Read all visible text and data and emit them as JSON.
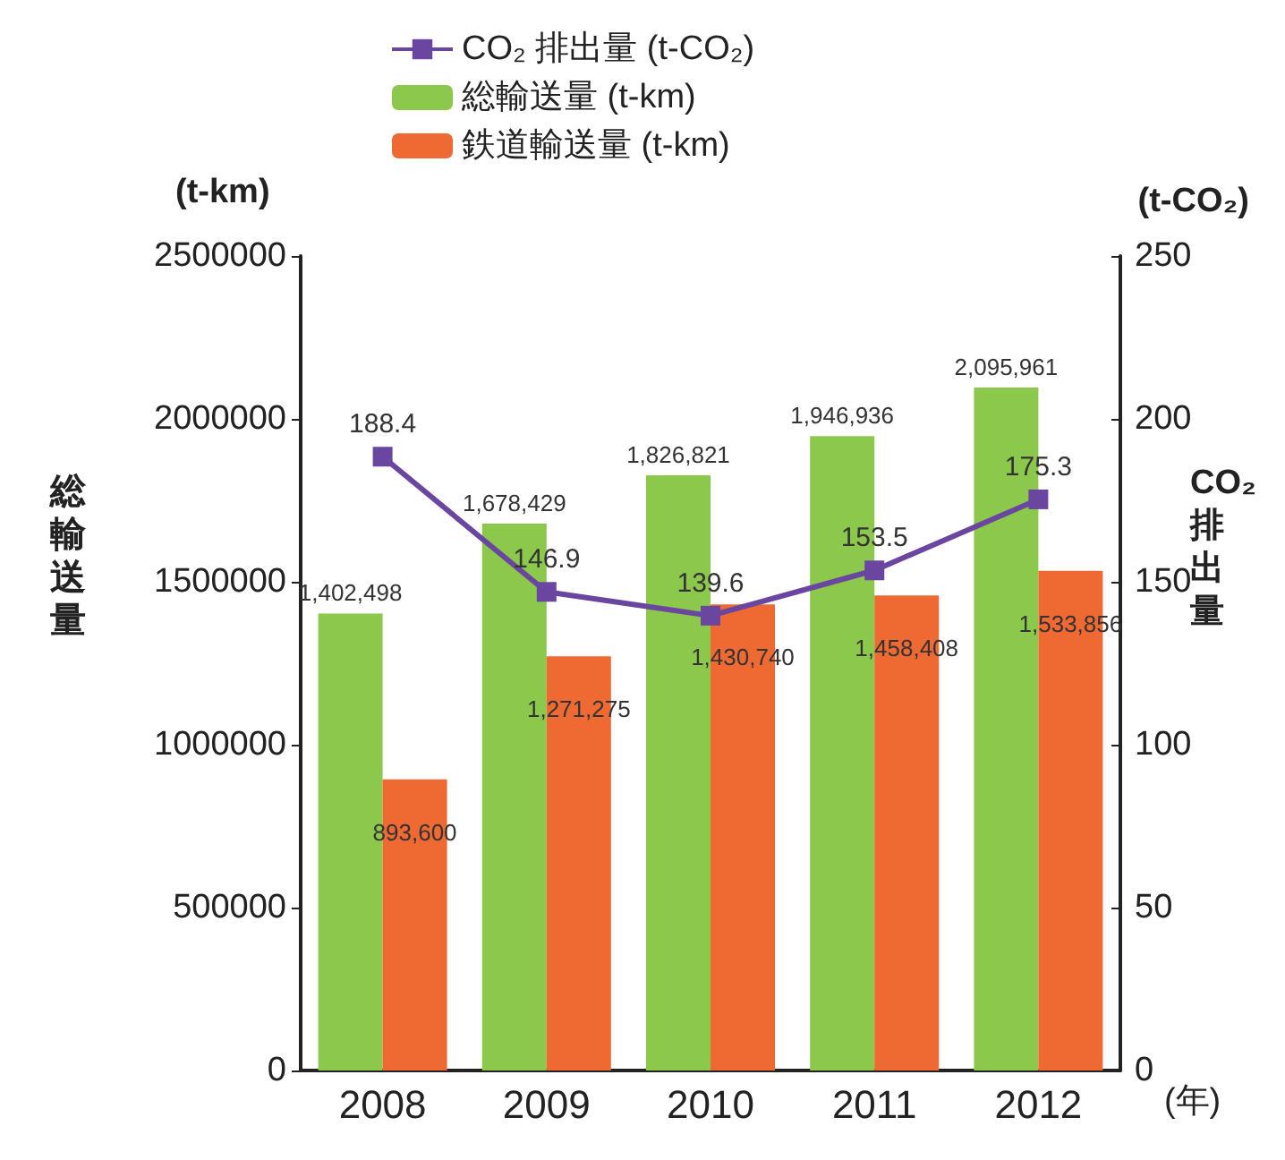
{
  "chart_data": {
    "type": "bar",
    "categories": [
      "2008",
      "2009",
      "2010",
      "2011",
      "2012"
    ],
    "series": [
      {
        "name": "CO₂ 排出量 (t-CO₂)",
        "type": "line",
        "axis": "y2",
        "color": "#6a46a0",
        "marker": "square",
        "values": [
          188.4,
          146.9,
          139.6,
          153.5,
          175.3
        ],
        "value_labels": [
          "188.4",
          "146.9",
          "139.6",
          "153.5",
          "175.3"
        ]
      },
      {
        "name": "総輸送量 (t-km)",
        "color": "#8cc84b",
        "values": [
          1402498,
          1678429,
          1826821,
          1946936,
          2095961
        ],
        "value_labels": [
          "1,402,498",
          "1,678,429",
          "1,826,821",
          "1,946,936",
          "2,095,961"
        ]
      },
      {
        "name": "鉄道輸送量 (t-km)",
        "color": "#ee6a32",
        "values": [
          893600,
          1271275,
          1430740,
          1458408,
          1533856
        ],
        "value_labels": [
          "893,600",
          "1,271,275",
          "1,430,740",
          "1,458,408",
          "1,533,856"
        ]
      }
    ],
    "xlabel": "(年)",
    "ylabel": "総輸送量",
    "y2label": "CO₂排出量",
    "annotations": [
      "(t-km)",
      "(t-CO₂)"
    ],
    "ylim": [
      0,
      2500000
    ],
    "yticks": [
      0,
      500000,
      1000000,
      1500000,
      2000000,
      2500000
    ],
    "y2lim": [
      0,
      250
    ],
    "y2ticks": [
      0,
      50,
      100,
      150,
      200,
      250
    ],
    "legend": "top",
    "grid": false
  }
}
